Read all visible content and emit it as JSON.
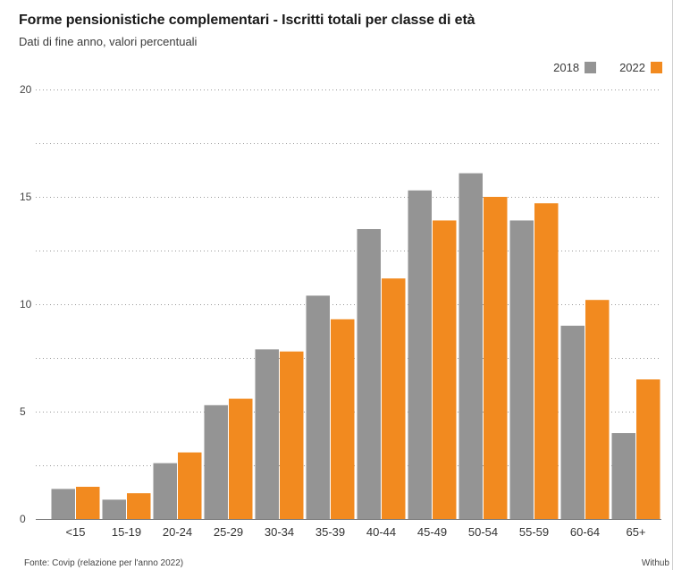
{
  "header": {
    "title": "Forme pensionistiche complementari - Iscritti totali per classe di età",
    "subtitle": "Dati di fine anno, valori percentuali"
  },
  "footer": {
    "source": "Fonte: Covip (relazione per l'anno 2022)",
    "credit": "Withub"
  },
  "colors": {
    "series_2018": "#949494",
    "series_2022": "#f28a1f"
  },
  "chart_data": {
    "type": "bar",
    "title": "Forme pensionistiche complementari - Iscritti totali per classe di età",
    "subtitle": "Dati di fine anno, valori percentuali",
    "xlabel": "",
    "ylabel": "",
    "ylim": [
      0,
      20
    ],
    "yticks": [
      0,
      5,
      10,
      15,
      20
    ],
    "grid": true,
    "legend_position": "top-right",
    "categories": [
      "<15",
      "15-19",
      "20-24",
      "25-29",
      "30-34",
      "35-39",
      "40-44",
      "45-49",
      "50-54",
      "55-59",
      "60-64",
      "65+"
    ],
    "series": [
      {
        "name": "2018",
        "values": [
          1.4,
          0.9,
          2.6,
          5.3,
          7.9,
          10.4,
          13.5,
          15.3,
          16.1,
          13.9,
          9.0,
          4.0
        ]
      },
      {
        "name": "2022",
        "values": [
          1.5,
          1.2,
          3.1,
          5.6,
          7.8,
          9.3,
          11.2,
          13.9,
          15.0,
          14.7,
          10.2,
          6.5
        ]
      }
    ]
  }
}
